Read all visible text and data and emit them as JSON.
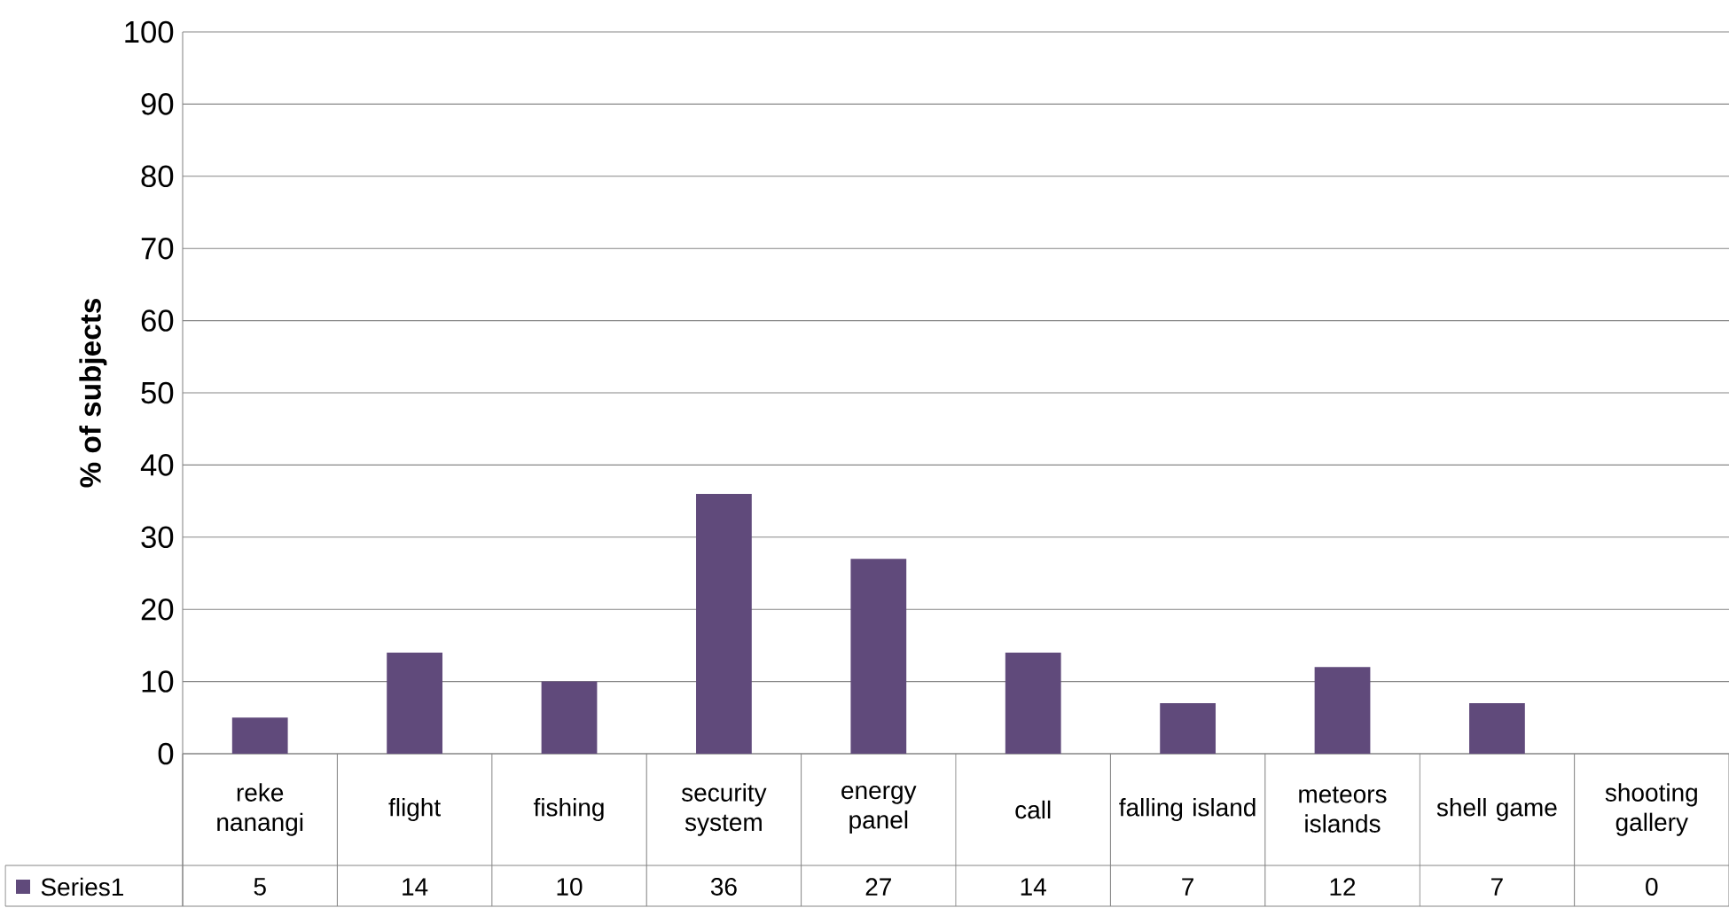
{
  "chart_data": {
    "type": "bar",
    "ylabel": "% of subjects",
    "categories": [
      "reke nanangi",
      "flight",
      "fishing",
      "security system",
      "energy panel",
      "call",
      "falling island",
      "meteors islands",
      "shell game",
      "shooting gallery"
    ],
    "series": [
      {
        "name": "Series1",
        "color": "#604a7b",
        "values": [
          5,
          14,
          10,
          36,
          27,
          14,
          7,
          12,
          7,
          0
        ]
      }
    ],
    "ylim": [
      0,
      100
    ],
    "yticks": [
      0,
      10,
      20,
      30,
      40,
      50,
      60,
      70,
      80,
      90,
      100
    ],
    "grid": "y",
    "data_labels": true
  }
}
